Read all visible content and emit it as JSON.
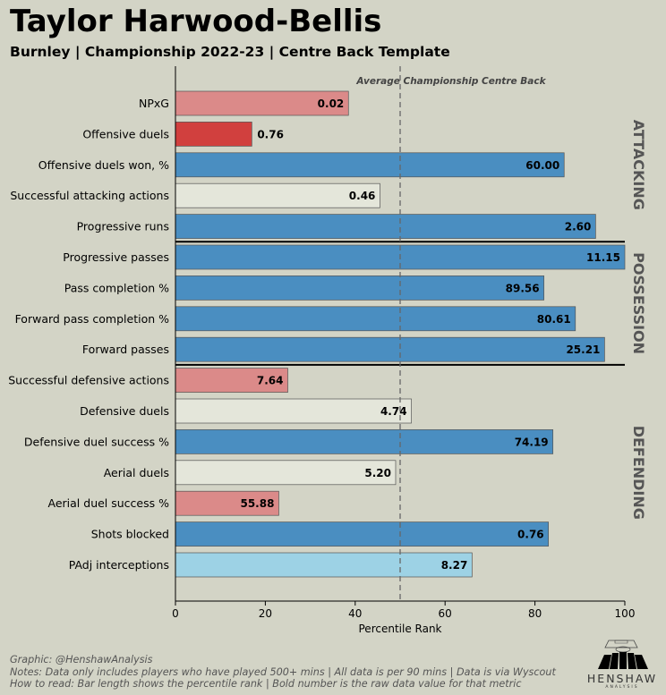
{
  "header": {
    "title": "Taylor Harwood-Bellis",
    "subtitle": "Burnley | Championship 2022-23 | Centre Back Template"
  },
  "chart_data": {
    "type": "bar",
    "orientation": "horizontal",
    "xlabel": "Percentile Rank",
    "xlim": [
      0,
      100
    ],
    "xticks": [
      0,
      20,
      40,
      60,
      80,
      100
    ],
    "reference_line": {
      "value": 50,
      "label": "Average Championship Centre Back"
    },
    "sections": [
      {
        "name": "ATTACKING",
        "start": 0,
        "end": 4
      },
      {
        "name": "POSSESSION",
        "start": 5,
        "end": 8
      },
      {
        "name": "DEFENDING",
        "start": 9,
        "end": 15
      }
    ],
    "metrics": [
      {
        "label": "NPxG",
        "percentile": 38.5,
        "value": "0.02",
        "color": "#db8a89"
      },
      {
        "label": "Offensive duels",
        "percentile": 17,
        "value": "0.76",
        "color": "#d1403e"
      },
      {
        "label": "Offensive duels won, %",
        "percentile": 86.5,
        "value": "60.00",
        "color": "#4a8ec1"
      },
      {
        "label": "Successful attacking actions",
        "percentile": 45.5,
        "value": "0.46",
        "color": "#e4e6da"
      },
      {
        "label": "Progressive runs",
        "percentile": 93.5,
        "value": "2.60",
        "color": "#4a8ec1"
      },
      {
        "label": "Progressive passes",
        "percentile": 100,
        "value": "11.15",
        "color": "#4a8ec1"
      },
      {
        "label": "Pass completion %",
        "percentile": 82,
        "value": "89.56",
        "color": "#4a8ec1"
      },
      {
        "label": "Forward pass completion %",
        "percentile": 89,
        "value": "80.61",
        "color": "#4a8ec1"
      },
      {
        "label": "Forward passes",
        "percentile": 95.5,
        "value": "25.21",
        "color": "#4a8ec1"
      },
      {
        "label": "Successful defensive actions",
        "percentile": 25,
        "value": "7.64",
        "color": "#db8a89"
      },
      {
        "label": "Defensive duels",
        "percentile": 52.5,
        "value": "4.74",
        "color": "#e4e6da"
      },
      {
        "label": "Defensive duel success %",
        "percentile": 84,
        "value": "74.19",
        "color": "#4a8ec1"
      },
      {
        "label": "Aerial duels",
        "percentile": 49,
        "value": "5.20",
        "color": "#e4e6da"
      },
      {
        "label": "Aerial duel success %",
        "percentile": 23,
        "value": "55.88",
        "color": "#db8a89"
      },
      {
        "label": "Shots blocked",
        "percentile": 83,
        "value": "0.76",
        "color": "#4a8ec1"
      },
      {
        "label": "PAdj interceptions",
        "percentile": 66,
        "value": "8.27",
        "color": "#9dd2e5"
      }
    ]
  },
  "footer": {
    "credit": "Graphic: @HenshawAnalysis",
    "notes": "Notes: Data only includes players who have played 500+ mins | All data is per 90 mins | Data is via Wyscout",
    "how_to": "How to read: Bar length shows the percentile rank | Bold number is the raw data value for that metric"
  },
  "logo": {
    "word": "HENSHAW",
    "sub": "ANALYSIS"
  }
}
